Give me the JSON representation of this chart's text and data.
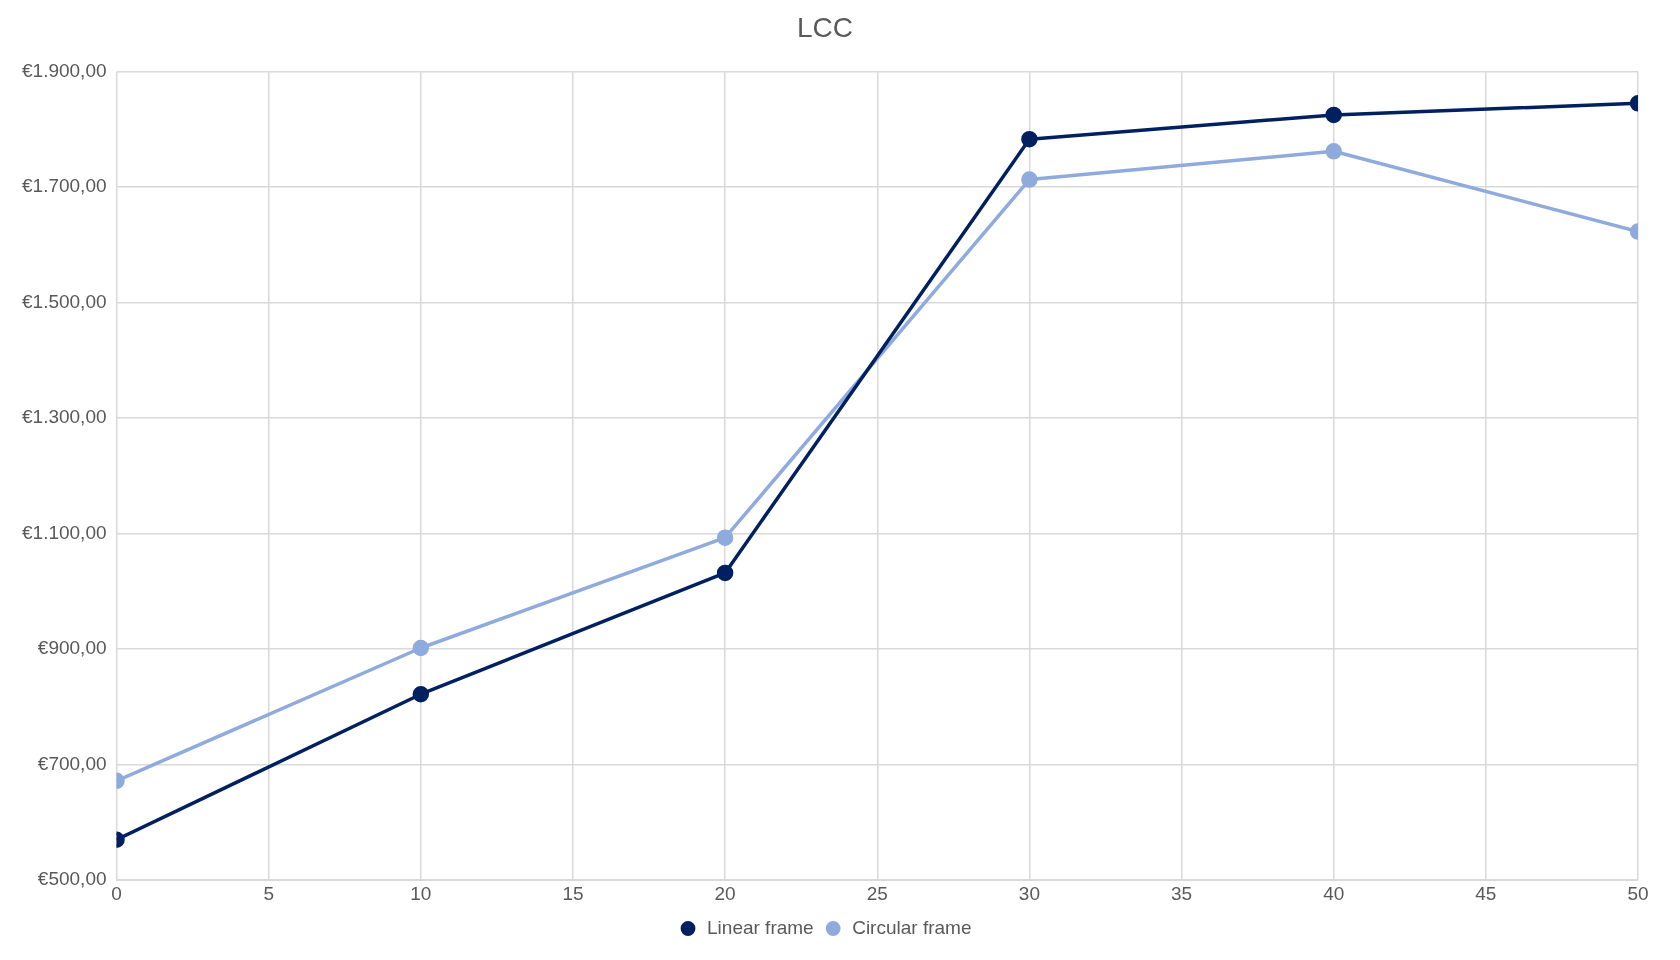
{
  "chart_data": {
    "type": "line",
    "title": "LCC",
    "x": [
      0,
      10,
      20,
      30,
      40,
      50
    ],
    "series": [
      {
        "name": "Linear frame",
        "color": "#002060",
        "values": [
          570,
          822,
          1032,
          1783,
          1825,
          1845
        ]
      },
      {
        "name": "Circular frame",
        "color": "#8faadc",
        "values": [
          672,
          902,
          1093,
          1713,
          1762,
          1623
        ]
      }
    ],
    "xlim": [
      0,
      50
    ],
    "xticks": [
      0,
      5,
      10,
      15,
      20,
      25,
      30,
      35,
      40,
      45,
      50
    ],
    "ylim": [
      500,
      1900
    ],
    "yticks": [
      {
        "value": 500,
        "label": "€500,00"
      },
      {
        "value": 700,
        "label": "€700,00"
      },
      {
        "value": 900,
        "label": "€900,00"
      },
      {
        "value": 1100,
        "label": "€1.100,00"
      },
      {
        "value": 1300,
        "label": "€1.300,00"
      },
      {
        "value": 1500,
        "label": "€1.500,00"
      },
      {
        "value": 1700,
        "label": "€1.700,00"
      },
      {
        "value": 1900,
        "label": "€1.900,00"
      }
    ],
    "grid": true,
    "legend": "bottom",
    "marker": "circle",
    "line_style": "solid"
  }
}
